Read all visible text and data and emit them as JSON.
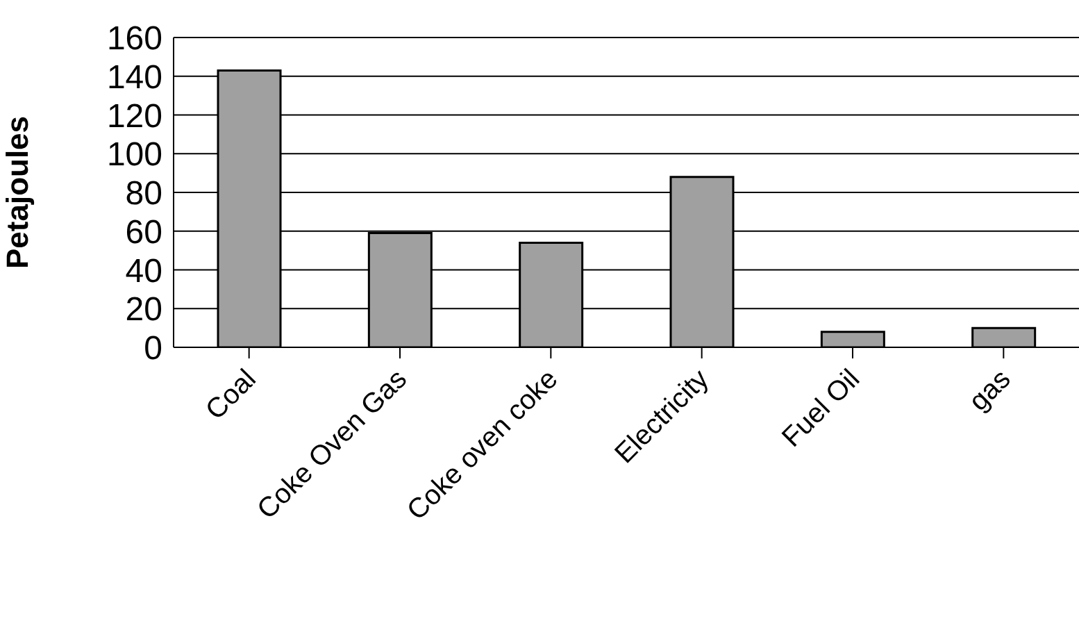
{
  "chart_data": {
    "type": "bar",
    "ylabel": "Petajoules",
    "categories": [
      "Coal",
      "Coke Oven Gas",
      "Coke oven coke",
      "Electricity",
      "Fuel Oil",
      "gas"
    ],
    "values": [
      143,
      59,
      54,
      88,
      8,
      10
    ],
    "color": "#a0a0a0",
    "ylim": [
      0,
      160
    ],
    "yticks": [
      0,
      20,
      40,
      60,
      80,
      100,
      120,
      140,
      160
    ],
    "grid": "y"
  }
}
